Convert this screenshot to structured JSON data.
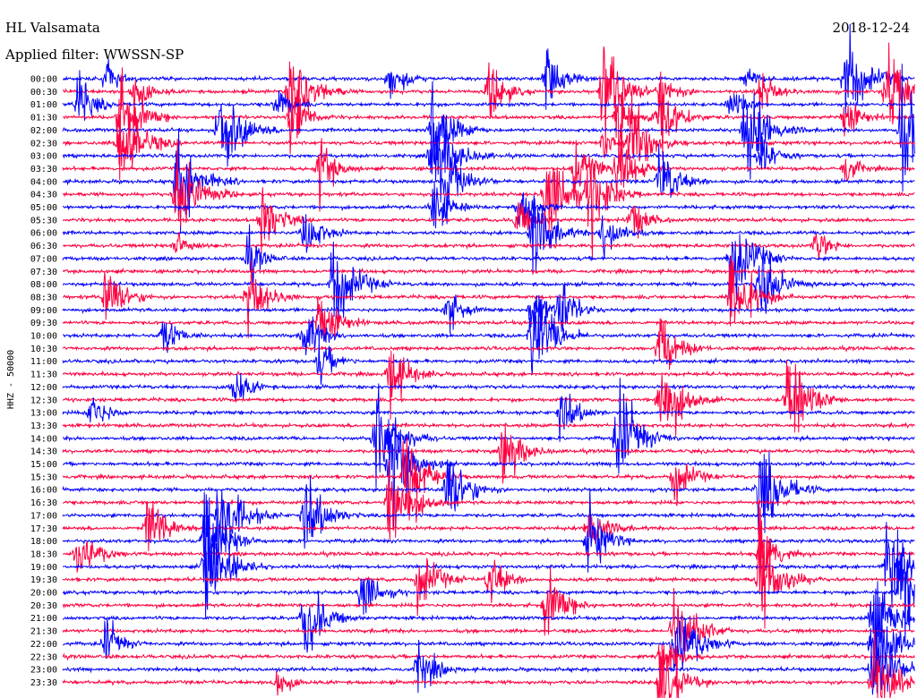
{
  "header": {
    "station": "HL Valsamata",
    "date": "2018-12-24",
    "filter_label": "Applied filter: WWSSN-SP"
  },
  "chart_data": {
    "type": "helicorder",
    "title": "HL Valsamata",
    "ylabel": "HHZ - 50000",
    "date": "2018-12-24",
    "filter": "WWSSN-SP",
    "row_interval_minutes": 30,
    "rows": [
      "00:00",
      "00:30",
      "01:00",
      "01:30",
      "02:00",
      "02:30",
      "03:00",
      "03:30",
      "04:00",
      "04:30",
      "05:00",
      "05:30",
      "06:00",
      "06:30",
      "07:00",
      "07:30",
      "08:00",
      "08:30",
      "09:00",
      "09:30",
      "10:00",
      "10:30",
      "11:00",
      "11:30",
      "12:00",
      "12:30",
      "13:00",
      "13:30",
      "14:00",
      "14:30",
      "15:00",
      "15:30",
      "16:00",
      "16:30",
      "17:00",
      "17:30",
      "18:00",
      "18:30",
      "19:00",
      "19:30",
      "20:00",
      "20:30",
      "21:00",
      "21:30",
      "22:00",
      "22:30",
      "23:00",
      "23:30"
    ],
    "trace_colors": [
      "#0000ff",
      "#ff0040"
    ],
    "color_pattern": "alternating blue/red by row",
    "events": [
      {
        "row": "00:00",
        "minute": 1.5,
        "strength": 0.5
      },
      {
        "row": "00:00",
        "minute": 11.5,
        "strength": 0.6
      },
      {
        "row": "00:00",
        "minute": 17,
        "strength": 0.7
      },
      {
        "row": "00:00",
        "minute": 27.5,
        "strength": 1.0
      },
      {
        "row": "00:00",
        "minute": 24,
        "strength": 0.4
      },
      {
        "row": "00:30",
        "minute": 2.5,
        "strength": 0.6
      },
      {
        "row": "00:30",
        "minute": 8,
        "strength": 1.0
      },
      {
        "row": "00:30",
        "minute": 15,
        "strength": 0.7
      },
      {
        "row": "00:30",
        "minute": 19,
        "strength": 1.0
      },
      {
        "row": "00:30",
        "minute": 21,
        "strength": 0.6
      },
      {
        "row": "00:30",
        "minute": 24.5,
        "strength": 0.6
      },
      {
        "row": "00:30",
        "minute": 29,
        "strength": 1.0
      },
      {
        "row": "01:00",
        "minute": 0.5,
        "strength": 0.7
      },
      {
        "row": "01:00",
        "minute": 7.5,
        "strength": 0.5
      },
      {
        "row": "01:00",
        "minute": 23.5,
        "strength": 0.5
      },
      {
        "row": "01:30",
        "minute": 2,
        "strength": 0.9
      },
      {
        "row": "01:30",
        "minute": 8,
        "strength": 0.7
      },
      {
        "row": "01:30",
        "minute": 19.5,
        "strength": 0.8
      },
      {
        "row": "01:30",
        "minute": 21,
        "strength": 0.8
      },
      {
        "row": "01:30",
        "minute": 27.5,
        "strength": 0.6
      },
      {
        "row": "02:00",
        "minute": 5.5,
        "strength": 1.0
      },
      {
        "row": "02:00",
        "minute": 13,
        "strength": 0.9
      },
      {
        "row": "02:00",
        "minute": 24,
        "strength": 1.0
      },
      {
        "row": "02:00",
        "minute": 29.5,
        "strength": 1.0
      },
      {
        "row": "02:30",
        "minute": 2,
        "strength": 1.0
      },
      {
        "row": "02:30",
        "minute": 20,
        "strength": 0.9
      },
      {
        "row": "02:30",
        "minute": 19,
        "strength": 0.5
      },
      {
        "row": "03:00",
        "minute": 13,
        "strength": 1.0
      },
      {
        "row": "03:00",
        "minute": 24.5,
        "strength": 0.6
      },
      {
        "row": "03:30",
        "minute": 9,
        "strength": 0.7
      },
      {
        "row": "03:30",
        "minute": 18,
        "strength": 0.8
      },
      {
        "row": "03:30",
        "minute": 19.5,
        "strength": 0.8
      },
      {
        "row": "03:30",
        "minute": 27.5,
        "strength": 0.5
      },
      {
        "row": "04:00",
        "minute": 4,
        "strength": 1.0
      },
      {
        "row": "04:00",
        "minute": 13.5,
        "strength": 0.8
      },
      {
        "row": "04:00",
        "minute": 21,
        "strength": 0.8
      },
      {
        "row": "04:30",
        "minute": 4,
        "strength": 1.0
      },
      {
        "row": "04:30",
        "minute": 17,
        "strength": 1.0
      },
      {
        "row": "04:30",
        "minute": 18.5,
        "strength": 0.9
      },
      {
        "row": "05:00",
        "minute": 13,
        "strength": 0.7
      },
      {
        "row": "05:00",
        "minute": 16,
        "strength": 0.7
      },
      {
        "row": "05:30",
        "minute": 7,
        "strength": 0.8
      },
      {
        "row": "05:30",
        "minute": 16,
        "strength": 0.6
      },
      {
        "row": "05:30",
        "minute": 20,
        "strength": 0.6
      },
      {
        "row": "06:00",
        "minute": 8.5,
        "strength": 0.7
      },
      {
        "row": "06:00",
        "minute": 16.5,
        "strength": 0.9
      },
      {
        "row": "06:00",
        "minute": 19,
        "strength": 0.7
      },
      {
        "row": "06:30",
        "minute": 4,
        "strength": 0.5
      },
      {
        "row": "06:30",
        "minute": 26.5,
        "strength": 0.5
      },
      {
        "row": "07:00",
        "minute": 6.5,
        "strength": 0.6
      },
      {
        "row": "07:00",
        "minute": 23.5,
        "strength": 1.0
      },
      {
        "row": "08:00",
        "minute": 9.5,
        "strength": 1.0
      },
      {
        "row": "08:00",
        "minute": 24.5,
        "strength": 0.9
      },
      {
        "row": "08:30",
        "minute": 1.5,
        "strength": 0.8
      },
      {
        "row": "08:30",
        "minute": 6.5,
        "strength": 0.8
      },
      {
        "row": "08:30",
        "minute": 23.5,
        "strength": 1.0
      },
      {
        "row": "09:00",
        "minute": 13.5,
        "strength": 0.6
      },
      {
        "row": "09:00",
        "minute": 16.5,
        "strength": 0.7
      },
      {
        "row": "09:00",
        "minute": 17.5,
        "strength": 0.7
      },
      {
        "row": "09:30",
        "minute": 9,
        "strength": 0.8
      },
      {
        "row": "10:00",
        "minute": 3.5,
        "strength": 0.6
      },
      {
        "row": "10:00",
        "minute": 8.5,
        "strength": 0.7
      },
      {
        "row": "10:00",
        "minute": 16.5,
        "strength": 1.0
      },
      {
        "row": "10:30",
        "minute": 21,
        "strength": 0.8
      },
      {
        "row": "11:00",
        "minute": 9,
        "strength": 0.6
      },
      {
        "row": "11:30",
        "minute": 11.5,
        "strength": 0.8
      },
      {
        "row": "12:00",
        "minute": 6,
        "strength": 0.6
      },
      {
        "row": "12:30",
        "minute": 21,
        "strength": 1.0
      },
      {
        "row": "12:30",
        "minute": 25.5,
        "strength": 1.0
      },
      {
        "row": "13:00",
        "minute": 1,
        "strength": 0.6
      },
      {
        "row": "13:00",
        "minute": 17.5,
        "strength": 0.7
      },
      {
        "row": "14:00",
        "minute": 11,
        "strength": 1.0
      },
      {
        "row": "14:00",
        "minute": 19.5,
        "strength": 1.0
      },
      {
        "row": "14:30",
        "minute": 15.5,
        "strength": 0.8
      },
      {
        "row": "15:00",
        "minute": 11.5,
        "strength": 1.0
      },
      {
        "row": "15:30",
        "minute": 12,
        "strength": 1.0
      },
      {
        "row": "15:30",
        "minute": 21.5,
        "strength": 0.7
      },
      {
        "row": "16:00",
        "minute": 13.5,
        "strength": 0.9
      },
      {
        "row": "16:00",
        "minute": 24.5,
        "strength": 1.0
      },
      {
        "row": "16:30",
        "minute": 11.5,
        "strength": 1.0
      },
      {
        "row": "17:00",
        "minute": 5.5,
        "strength": 1.0
      },
      {
        "row": "17:00",
        "minute": 8.5,
        "strength": 0.9
      },
      {
        "row": "17:30",
        "minute": 3,
        "strength": 0.8
      },
      {
        "row": "17:30",
        "minute": 18.5,
        "strength": 0.7
      },
      {
        "row": "18:00",
        "minute": 5,
        "strength": 1.0
      },
      {
        "row": "18:00",
        "minute": 18.5,
        "strength": 0.8
      },
      {
        "row": "18:30",
        "minute": 0.5,
        "strength": 0.8
      },
      {
        "row": "18:30",
        "minute": 24.5,
        "strength": 0.8
      },
      {
        "row": "19:00",
        "minute": 5,
        "strength": 1.0
      },
      {
        "row": "19:00",
        "minute": 29,
        "strength": 1.0
      },
      {
        "row": "19:30",
        "minute": 12.5,
        "strength": 0.8
      },
      {
        "row": "19:30",
        "minute": 15,
        "strength": 0.7
      },
      {
        "row": "19:30",
        "minute": 24.5,
        "strength": 1.0
      },
      {
        "row": "20:00",
        "minute": 10.5,
        "strength": 0.7
      },
      {
        "row": "20:00",
        "minute": 29.5,
        "strength": 1.0
      },
      {
        "row": "20:30",
        "minute": 17,
        "strength": 0.8
      },
      {
        "row": "21:00",
        "minute": 8.5,
        "strength": 0.9
      },
      {
        "row": "21:00",
        "minute": 28.5,
        "strength": 1.0
      },
      {
        "row": "21:30",
        "minute": 21.5,
        "strength": 1.0
      },
      {
        "row": "22:00",
        "minute": 1.5,
        "strength": 0.6
      },
      {
        "row": "22:00",
        "minute": 21.5,
        "strength": 1.0
      },
      {
        "row": "22:00",
        "minute": 28.5,
        "strength": 1.0
      },
      {
        "row": "22:30",
        "minute": 21,
        "strength": 0.7
      },
      {
        "row": "23:00",
        "minute": 12.5,
        "strength": 0.7
      },
      {
        "row": "23:00",
        "minute": 28.5,
        "strength": 1.0
      },
      {
        "row": "23:30",
        "minute": 7.5,
        "strength": 0.5
      },
      {
        "row": "23:30",
        "minute": 21,
        "strength": 0.9
      },
      {
        "row": "23:30",
        "minute": 28.5,
        "strength": 1.0
      }
    ]
  }
}
